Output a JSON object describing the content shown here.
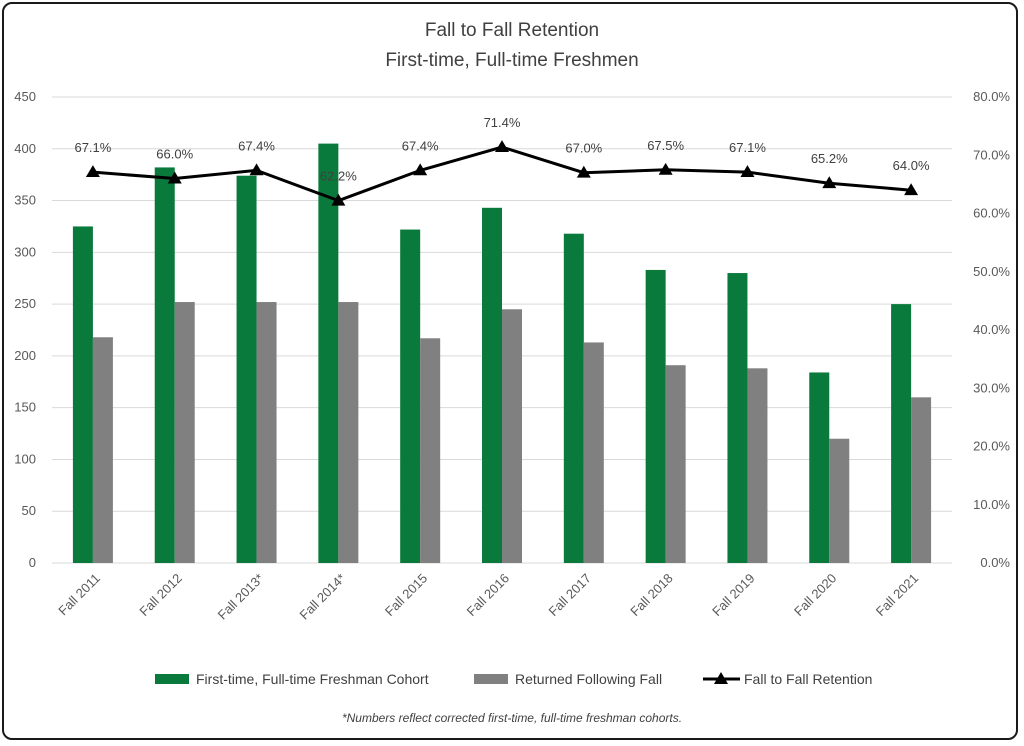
{
  "chart_data": {
    "type": "bar",
    "title": "Fall to Fall Retention",
    "subtitle": "First-time, Full-time Freshmen",
    "categories": [
      "Fall 2011",
      "Fall 2012",
      "Fall 2013*",
      "Fall 2014*",
      "Fall 2015",
      "Fall 2016",
      "Fall 2017",
      "Fall 2018",
      "Fall 2019",
      "Fall 2020",
      "Fall 2021"
    ],
    "series": [
      {
        "name": "First-time, Full-time Freshman Cohort",
        "type": "bar",
        "axis": "left",
        "color": "#0a7a3c",
        "values": [
          325,
          382,
          374,
          405,
          322,
          343,
          318,
          283,
          280,
          184,
          250
        ]
      },
      {
        "name": "Returned Following Fall",
        "type": "bar",
        "axis": "left",
        "color": "#808080",
        "values": [
          218,
          252,
          252,
          252,
          217,
          245,
          213,
          191,
          188,
          120,
          160
        ]
      },
      {
        "name": "Fall to Fall Retention",
        "type": "line",
        "axis": "right",
        "color": "#000000",
        "values": [
          67.1,
          66.0,
          67.4,
          62.2,
          67.4,
          71.4,
          67.0,
          67.5,
          67.1,
          65.2,
          64.0
        ],
        "labels": [
          "67.1%",
          "66.0%",
          "67.4%",
          "62.2%",
          "67.4%",
          "71.4%",
          "67.0%",
          "67.5%",
          "67.1%",
          "65.2%",
          "64.0%"
        ]
      }
    ],
    "yaxis_left": {
      "min": 0,
      "max": 450,
      "ticks": [
        "0",
        "50",
        "100",
        "150",
        "200",
        "250",
        "300",
        "350",
        "400",
        "450"
      ]
    },
    "yaxis_right": {
      "min": 0,
      "max": 80,
      "ticks": [
        "0.0%",
        "10.0%",
        "20.0%",
        "30.0%",
        "40.0%",
        "50.0%",
        "60.0%",
        "70.0%",
        "80.0%"
      ]
    },
    "grid": true,
    "legend_position": "bottom",
    "footnote": "*Numbers reflect corrected first-time, full-time freshman cohorts."
  }
}
